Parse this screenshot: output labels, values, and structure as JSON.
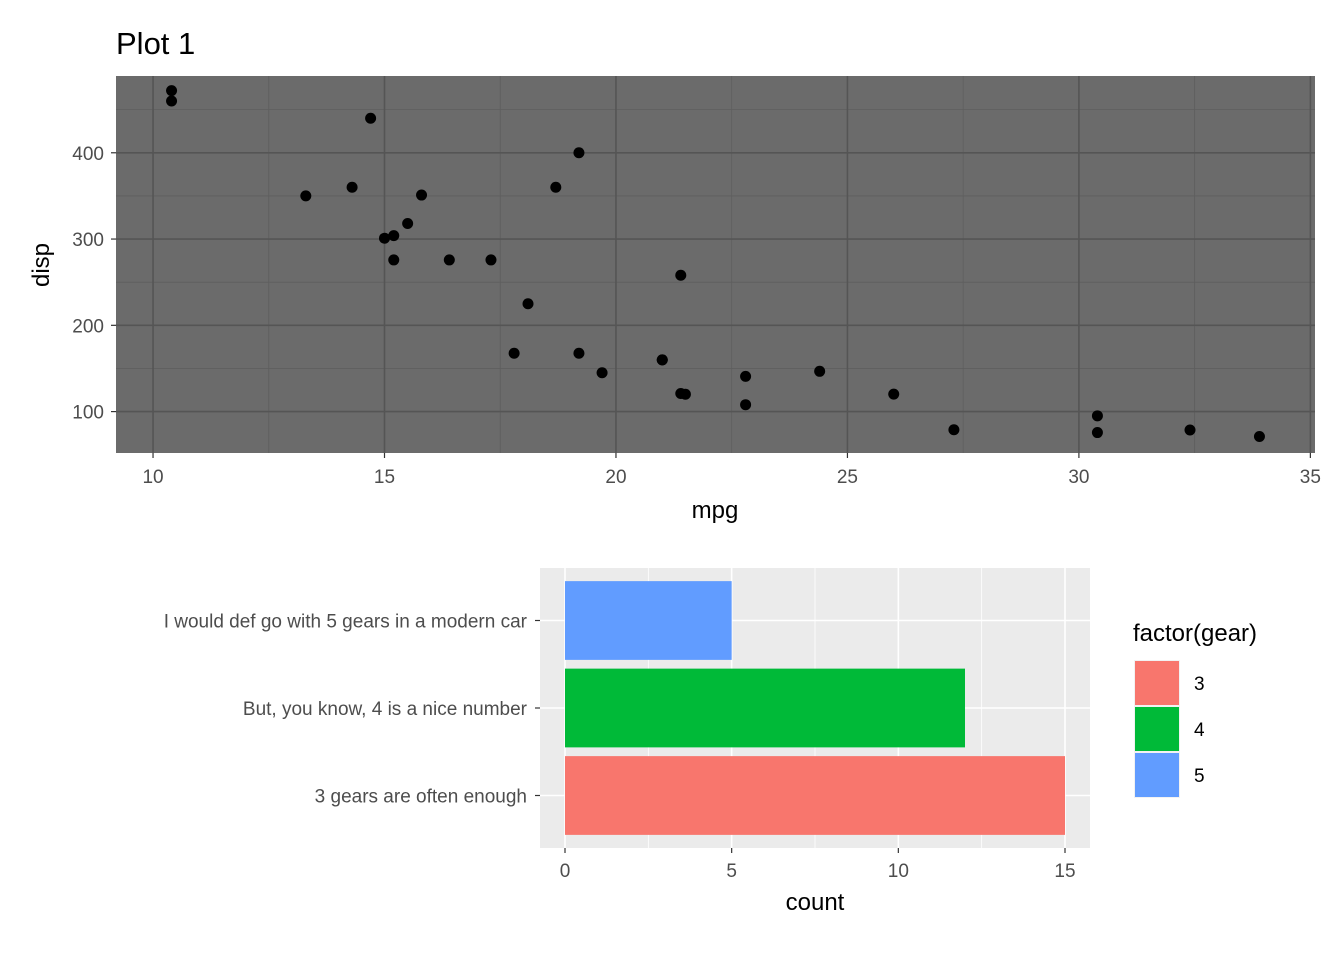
{
  "chart_data": [
    {
      "type": "scatter",
      "title": "Plot 1",
      "xlabel": "mpg",
      "ylabel": "disp",
      "xlim": [
        9.2,
        35.1
      ],
      "ylim": [
        52,
        489
      ],
      "xticks": [
        "10",
        "15",
        "20",
        "25",
        "30",
        "35"
      ],
      "yticks": [
        "100",
        "200",
        "300",
        "400"
      ],
      "grid": true,
      "panel_color": "#6b6b6b",
      "point_color": "#000000",
      "points": [
        {
          "x": 21.0,
          "y": 160
        },
        {
          "x": 21.0,
          "y": 160
        },
        {
          "x": 22.8,
          "y": 108
        },
        {
          "x": 21.4,
          "y": 258
        },
        {
          "x": 18.7,
          "y": 360
        },
        {
          "x": 18.1,
          "y": 225
        },
        {
          "x": 14.3,
          "y": 360
        },
        {
          "x": 24.4,
          "y": 146.7
        },
        {
          "x": 22.8,
          "y": 140.8
        },
        {
          "x": 19.2,
          "y": 167.6
        },
        {
          "x": 17.8,
          "y": 167.6
        },
        {
          "x": 16.4,
          "y": 275.8
        },
        {
          "x": 17.3,
          "y": 275.8
        },
        {
          "x": 15.2,
          "y": 275.8
        },
        {
          "x": 10.4,
          "y": 472
        },
        {
          "x": 10.4,
          "y": 460
        },
        {
          "x": 14.7,
          "y": 440
        },
        {
          "x": 32.4,
          "y": 78.7
        },
        {
          "x": 30.4,
          "y": 75.7
        },
        {
          "x": 33.9,
          "y": 71.1
        },
        {
          "x": 21.5,
          "y": 120.1
        },
        {
          "x": 15.5,
          "y": 318
        },
        {
          "x": 15.2,
          "y": 304
        },
        {
          "x": 13.3,
          "y": 350
        },
        {
          "x": 19.2,
          "y": 400
        },
        {
          "x": 27.3,
          "y": 79
        },
        {
          "x": 26.0,
          "y": 120.3
        },
        {
          "x": 30.4,
          "y": 95.1
        },
        {
          "x": 15.8,
          "y": 351
        },
        {
          "x": 19.7,
          "y": 145
        },
        {
          "x": 15.0,
          "y": 301
        },
        {
          "x": 21.4,
          "y": 121
        }
      ]
    },
    {
      "type": "bar",
      "orientation": "horizontal",
      "xlabel": "count",
      "categories": [
        "3 gears are often enough",
        "But, you know, 4 is a nice number",
        "I would def go with 5 gears in a modern car"
      ],
      "values": [
        15,
        12,
        5
      ],
      "colors": [
        "#F8766D",
        "#00BA38",
        "#619CFF"
      ],
      "xlim": [
        -0.75,
        15.75
      ],
      "xticks": [
        "0",
        "5",
        "10",
        "15"
      ],
      "grid": true,
      "panel_color": "#ebebeb",
      "legend": {
        "title": "factor(gear)",
        "position": "right",
        "entries": [
          {
            "label": "3",
            "color": "#F8766D"
          },
          {
            "label": "4",
            "color": "#00BA38"
          },
          {
            "label": "5",
            "color": "#619CFF"
          }
        ]
      }
    }
  ]
}
